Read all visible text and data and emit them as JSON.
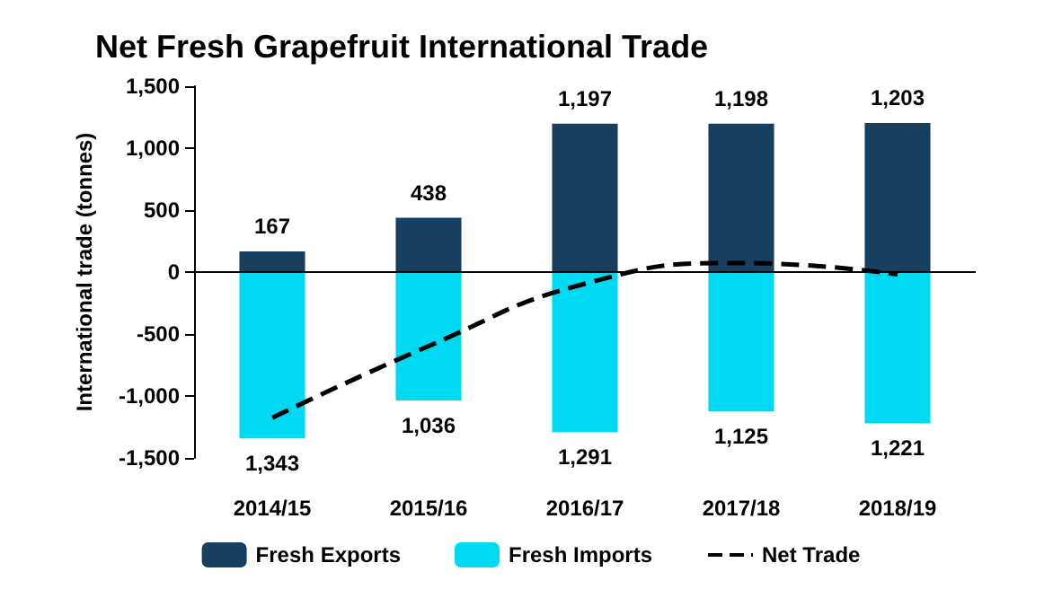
{
  "chart_data": {
    "type": "bar",
    "title": "Net Fresh Grapefruit International Trade",
    "ylabel": "International trade (tonnes)",
    "categories": [
      "2014/15",
      "2015/16",
      "2016/17",
      "2017/18",
      "2018/19"
    ],
    "series": [
      {
        "name": "Fresh Exports",
        "color": "#173f5f",
        "base": [
          0,
          0,
          0,
          0,
          0
        ],
        "values": [
          167,
          438,
          1197,
          1198,
          1203
        ],
        "value_labels": [
          "167",
          "438",
          "1,197",
          "1,198",
          "1,203"
        ]
      },
      {
        "name": "Fresh Imports",
        "color": "#00d9f2",
        "base": [
          -1343,
          -1036,
          -1291,
          -1125,
          -1221
        ],
        "values": [
          1343,
          1036,
          1291,
          1125,
          1221
        ],
        "value_labels": [
          "1,343",
          "1,036",
          "1,291",
          "1,125",
          "1,221"
        ]
      },
      {
        "name": "Net Trade",
        "type": "line",
        "color": "#000000",
        "line_style": "dashed",
        "marker": "none",
        "values": [
          -1176,
          -598,
          -94,
          73,
          -18
        ]
      }
    ],
    "ylim": [
      -1500,
      1500
    ],
    "yticks": [
      {
        "value": -1500,
        "label": "-1,500"
      },
      {
        "value": -1000,
        "label": "-1,000"
      },
      {
        "value": -500,
        "label": "-500"
      },
      {
        "value": 0,
        "label": "0"
      },
      {
        "value": 500,
        "label": "500"
      },
      {
        "value": 1000,
        "label": "1,000"
      },
      {
        "value": 1500,
        "label": "1,500"
      }
    ],
    "ref_lines": [
      {
        "axis": "y",
        "value": 0,
        "color": "#000000"
      }
    ],
    "grid": false,
    "legend": "bottom"
  }
}
